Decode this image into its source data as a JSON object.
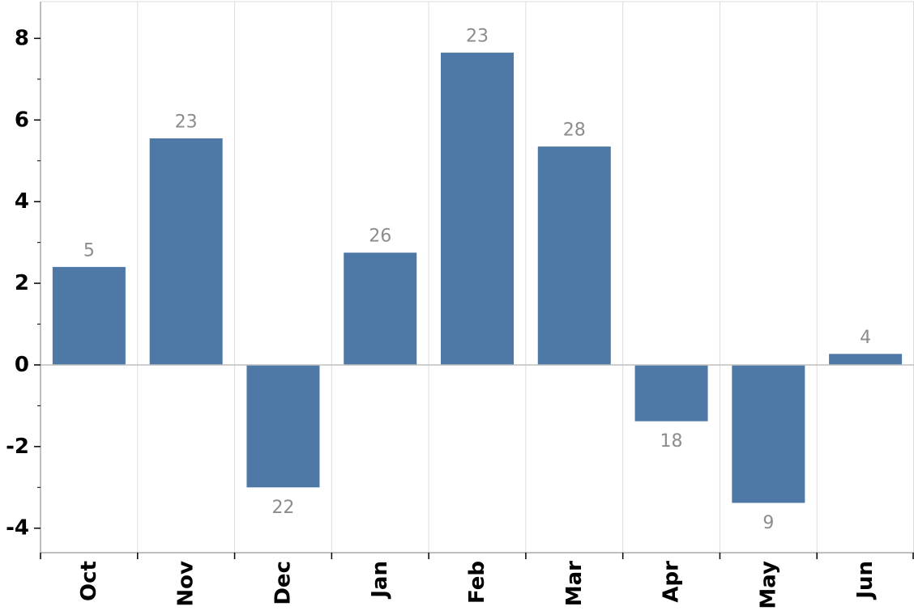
{
  "chart_data": {
    "type": "bar",
    "categories": [
      "Oct",
      "Nov",
      "Dec",
      "Jan",
      "Feb",
      "Mar",
      "Apr",
      "May",
      "Jun"
    ],
    "values": [
      2.4,
      5.55,
      -3.0,
      2.75,
      7.65,
      5.35,
      -1.38,
      -3.38,
      0.27
    ],
    "data_labels": [
      "5",
      "23",
      "22",
      "26",
      "23",
      "28",
      "18",
      "9",
      "4"
    ],
    "title": "",
    "xlabel": "",
    "ylabel": "",
    "ylim": [
      -4.6,
      8.9
    ],
    "yticks": [
      -4,
      -2,
      0,
      2,
      4,
      6,
      8
    ],
    "ytick_labels": [
      "-4",
      "-2",
      "0",
      "2",
      "4",
      "6",
      "8"
    ],
    "grid": "vertical",
    "legend": "none",
    "colors": {
      "bar": "#4e79a7",
      "data_label": "#8c8c8c",
      "grid": "#dcdcdc",
      "axis": "#7f7f7f"
    }
  }
}
